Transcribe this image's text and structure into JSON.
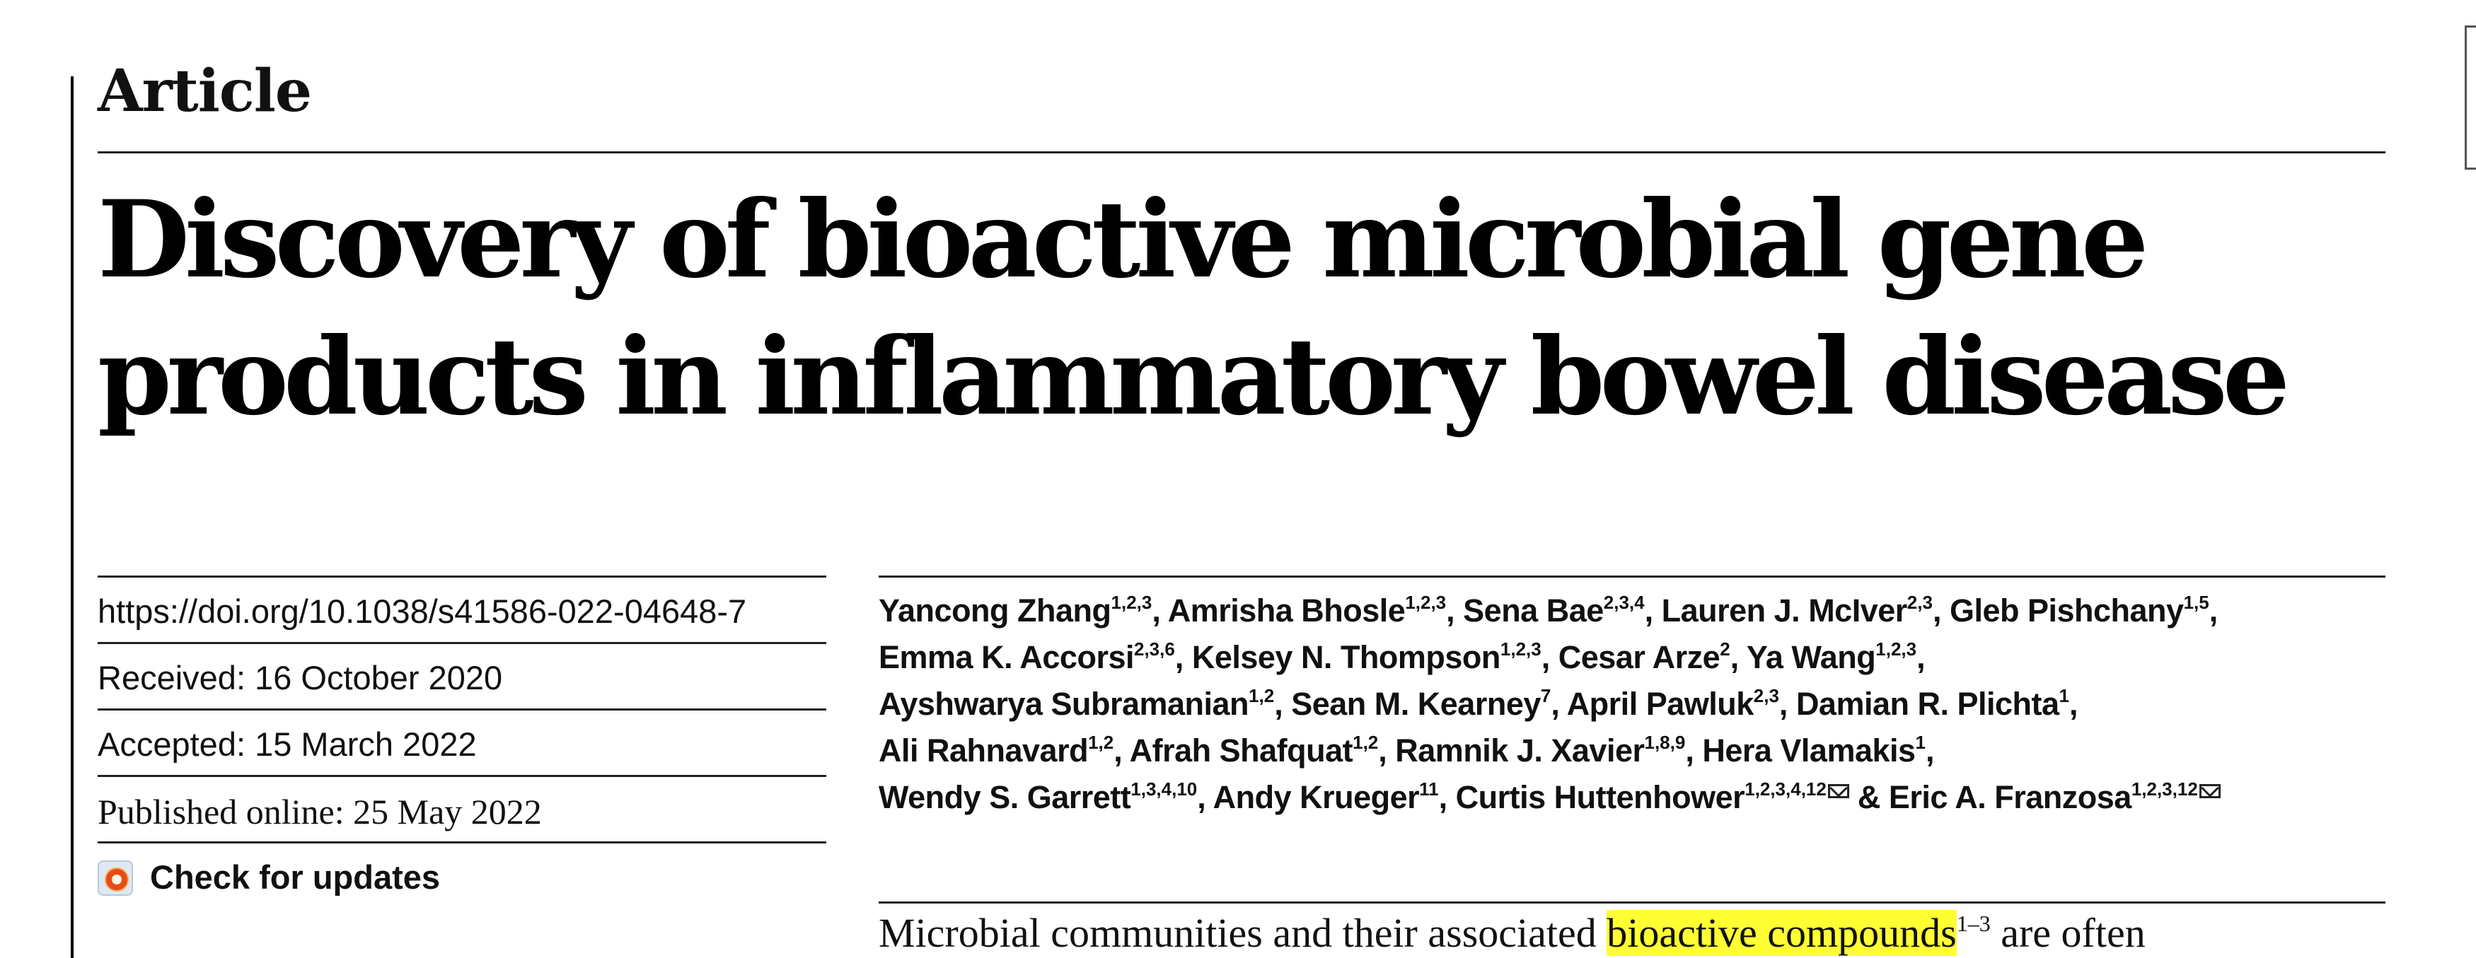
{
  "article_label": "Article",
  "title": "Discovery of bioactive microbial gene products in inflammatory bowel disease",
  "meta": {
    "doi": "https://doi.org/10.1038/s41586-022-04648-7",
    "received": "Received: 16 October 2020",
    "accepted": "Accepted: 15 March 2022",
    "published": "Published online: 25 May 2022",
    "check_updates": "Check for updates"
  },
  "authors": [
    {
      "name": "Yancong Zhang",
      "aff": "1,2,3"
    },
    {
      "name": "Amrisha Bhosle",
      "aff": "1,2,3"
    },
    {
      "name": "Sena Bae",
      "aff": "2,3,4"
    },
    {
      "name": "Lauren J. McIver",
      "aff": "2,3"
    },
    {
      "name": "Gleb Pishchany",
      "aff": "1,5"
    },
    {
      "name": "Emma K. Accorsi",
      "aff": "2,3,6"
    },
    {
      "name": "Kelsey N. Thompson",
      "aff": "1,2,3"
    },
    {
      "name": "Cesar Arze",
      "aff": "2"
    },
    {
      "name": "Ya Wang",
      "aff": "1,2,3"
    },
    {
      "name": "Ayshwarya Subramanian",
      "aff": "1,2"
    },
    {
      "name": "Sean M. Kearney",
      "aff": "7"
    },
    {
      "name": "April Pawluk",
      "aff": "2,3"
    },
    {
      "name": "Damian R. Plichta",
      "aff": "1"
    },
    {
      "name": "Ali Rahnavard",
      "aff": "1,2"
    },
    {
      "name": "Afrah Shafquat",
      "aff": "1,2"
    },
    {
      "name": "Ramnik J. Xavier",
      "aff": "1,8,9"
    },
    {
      "name": "Hera Vlamakis",
      "aff": "1"
    },
    {
      "name": "Wendy S. Garrett",
      "aff": "1,3,4,10"
    },
    {
      "name": "Andy Krueger",
      "aff": "11"
    },
    {
      "name": "Curtis Huttenhower",
      "aff": "1,2,3,4,12"
    },
    {
      "name": "Eric A. Franzosa",
      "aff": "1,2,3,12"
    }
  ],
  "author_separator": ", ",
  "author_conjunction": " & ",
  "abstract": {
    "before": "Microbial communities and their associated ",
    "highlight": "bioactive compounds",
    "citation": "1–3",
    "after": " are often"
  }
}
